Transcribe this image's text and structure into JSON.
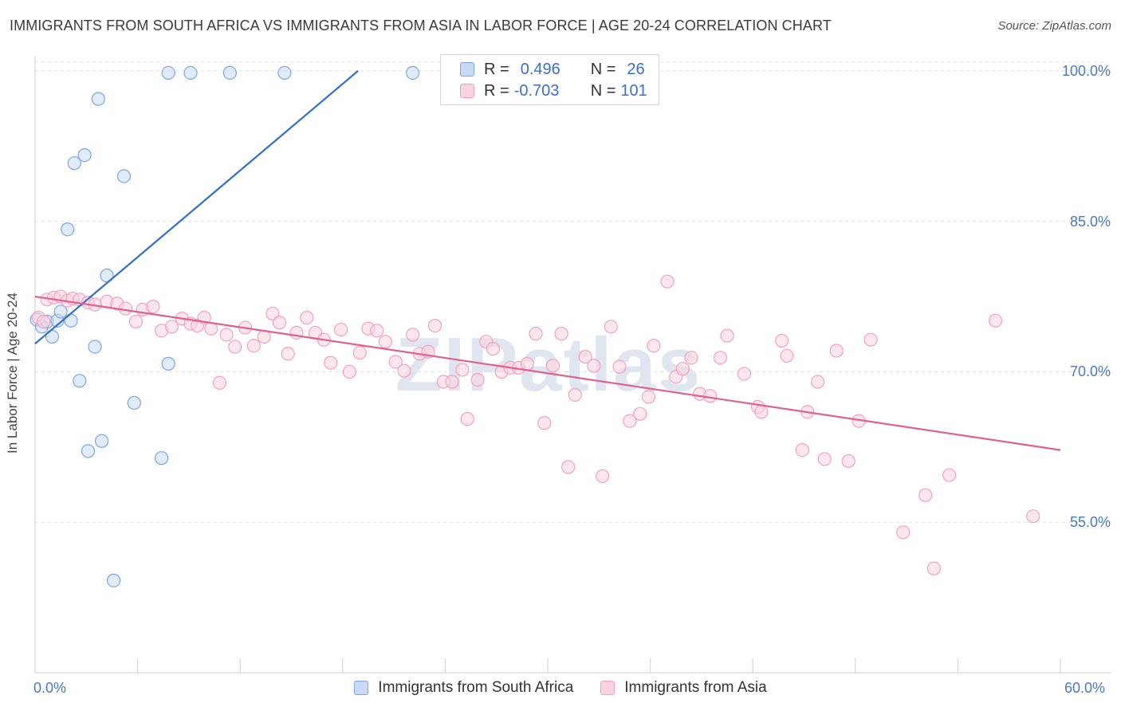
{
  "title": "IMMIGRANTS FROM SOUTH AFRICA VS IMMIGRANTS FROM ASIA IN LABOR FORCE | AGE 20-24 CORRELATION CHART",
  "source": "Source: ZipAtlas.com",
  "watermark": "ZIPatlas",
  "legend": {
    "rows": [
      {
        "r_label": "R =",
        "r_value": "0.496",
        "n_label": "N =",
        "n_value": "26",
        "color": "#7aa6e8"
      },
      {
        "r_label": "R =",
        "r_value": "-0.703",
        "n_label": "N =",
        "n_value": "101",
        "color": "#f3a1bd"
      }
    ]
  },
  "chart_data": {
    "type": "scatter",
    "xlabel": "",
    "ylabel": "In Labor Force | Age 20-24",
    "xlim": [
      0,
      60
    ],
    "ylim": [
      40,
      101.5
    ],
    "x_tick_labels": [
      "0.0%",
      "60.0%"
    ],
    "y_ticks": [
      55,
      70,
      85,
      100
    ],
    "y_tick_labels": [
      "55.0%",
      "70.0%",
      "85.0%",
      "100.0%"
    ],
    "grid": true,
    "legend_position": "top-center",
    "series": [
      {
        "name": "Immigrants from South Africa",
        "color": "#7aa6e8",
        "line": {
          "x1": 0,
          "y1": 72.8,
          "x2": 18.9,
          "y2": 100.0,
          "color": "#2f6fcc"
        },
        "points": [
          [
            0.1,
            75.2
          ],
          [
            0.4,
            74.5
          ],
          [
            0.7,
            75.0
          ],
          [
            1.0,
            73.5
          ],
          [
            1.3,
            75.1
          ],
          [
            1.5,
            76.0
          ],
          [
            2.1,
            75.1
          ],
          [
            1.9,
            84.2
          ],
          [
            2.3,
            90.8
          ],
          [
            2.9,
            91.6
          ],
          [
            3.7,
            97.2
          ],
          [
            5.2,
            89.5
          ],
          [
            4.2,
            79.6
          ],
          [
            3.5,
            72.5
          ],
          [
            2.6,
            69.1
          ],
          [
            7.8,
            70.8
          ],
          [
            5.8,
            66.9
          ],
          [
            3.1,
            62.1
          ],
          [
            3.9,
            63.1
          ],
          [
            7.4,
            61.4
          ],
          [
            4.6,
            49.2
          ],
          [
            7.8,
            99.8
          ],
          [
            9.1,
            99.8
          ],
          [
            11.4,
            99.8
          ],
          [
            14.6,
            99.8
          ],
          [
            22.1,
            99.8
          ]
        ]
      },
      {
        "name": "Immigrants from Asia",
        "color": "#f3a1bd",
        "line": {
          "x1": 0,
          "y1": 77.5,
          "x2": 60,
          "y2": 62.2,
          "color": "#e0608f"
        },
        "points": [
          [
            0.2,
            75.4
          ],
          [
            0.5,
            75.0
          ],
          [
            0.7,
            77.2
          ],
          [
            1.1,
            77.4
          ],
          [
            1.5,
            77.5
          ],
          [
            1.9,
            77.1
          ],
          [
            2.2,
            77.3
          ],
          [
            2.6,
            77.2
          ],
          [
            3.1,
            76.9
          ],
          [
            3.5,
            76.7
          ],
          [
            4.2,
            77.0
          ],
          [
            4.8,
            76.8
          ],
          [
            5.3,
            76.3
          ],
          [
            5.9,
            75.0
          ],
          [
            6.3,
            76.2
          ],
          [
            6.9,
            76.5
          ],
          [
            7.4,
            74.1
          ],
          [
            8.0,
            74.5
          ],
          [
            8.6,
            75.3
          ],
          [
            9.1,
            74.8
          ],
          [
            9.5,
            74.6
          ],
          [
            9.9,
            75.4
          ],
          [
            10.3,
            74.3
          ],
          [
            10.8,
            68.9
          ],
          [
            11.2,
            73.7
          ],
          [
            11.7,
            72.5
          ],
          [
            12.3,
            74.4
          ],
          [
            12.8,
            72.6
          ],
          [
            13.4,
            73.5
          ],
          [
            13.9,
            75.8
          ],
          [
            14.3,
            74.9
          ],
          [
            14.8,
            71.8
          ],
          [
            15.3,
            73.9
          ],
          [
            15.9,
            75.4
          ],
          [
            16.4,
            73.9
          ],
          [
            16.9,
            73.2
          ],
          [
            17.3,
            70.9
          ],
          [
            17.9,
            74.2
          ],
          [
            18.4,
            70.0
          ],
          [
            19.0,
            71.9
          ],
          [
            19.5,
            74.3
          ],
          [
            20.0,
            74.1
          ],
          [
            20.5,
            73.0
          ],
          [
            21.1,
            71.0
          ],
          [
            21.6,
            70.1
          ],
          [
            22.1,
            73.7
          ],
          [
            22.5,
            71.8
          ],
          [
            23.0,
            72.0
          ],
          [
            23.4,
            74.6
          ],
          [
            23.9,
            69.0
          ],
          [
            24.4,
            69.0
          ],
          [
            25.0,
            70.2
          ],
          [
            25.3,
            65.3
          ],
          [
            25.9,
            69.2
          ],
          [
            26.4,
            73.0
          ],
          [
            26.8,
            72.3
          ],
          [
            27.3,
            70.0
          ],
          [
            27.8,
            70.4
          ],
          [
            28.3,
            70.4
          ],
          [
            28.8,
            70.8
          ],
          [
            29.3,
            73.8
          ],
          [
            29.8,
            64.9
          ],
          [
            30.3,
            70.6
          ],
          [
            30.8,
            73.8
          ],
          [
            31.2,
            60.5
          ],
          [
            31.6,
            67.7
          ],
          [
            32.2,
            71.5
          ],
          [
            32.7,
            70.6
          ],
          [
            33.2,
            59.6
          ],
          [
            33.7,
            74.5
          ],
          [
            34.2,
            70.5
          ],
          [
            34.8,
            65.1
          ],
          [
            35.4,
            65.8
          ],
          [
            35.9,
            67.5
          ],
          [
            36.2,
            72.6
          ],
          [
            37.0,
            79.0
          ],
          [
            37.5,
            69.5
          ],
          [
            37.9,
            70.3
          ],
          [
            38.4,
            71.4
          ],
          [
            38.9,
            67.8
          ],
          [
            39.5,
            67.6
          ],
          [
            40.1,
            71.4
          ],
          [
            40.5,
            73.6
          ],
          [
            41.5,
            69.8
          ],
          [
            42.3,
            66.5
          ],
          [
            42.5,
            66.0
          ],
          [
            43.7,
            73.1
          ],
          [
            44.0,
            71.6
          ],
          [
            44.9,
            62.2
          ],
          [
            45.2,
            66.0
          ],
          [
            45.8,
            69.0
          ],
          [
            46.2,
            61.3
          ],
          [
            46.9,
            72.1
          ],
          [
            47.6,
            61.1
          ],
          [
            48.2,
            65.1
          ],
          [
            48.9,
            73.2
          ],
          [
            50.8,
            54.0
          ],
          [
            52.1,
            57.7
          ],
          [
            52.6,
            50.4
          ],
          [
            53.5,
            59.7
          ],
          [
            56.2,
            75.1
          ],
          [
            58.4,
            55.6
          ]
        ]
      }
    ]
  }
}
